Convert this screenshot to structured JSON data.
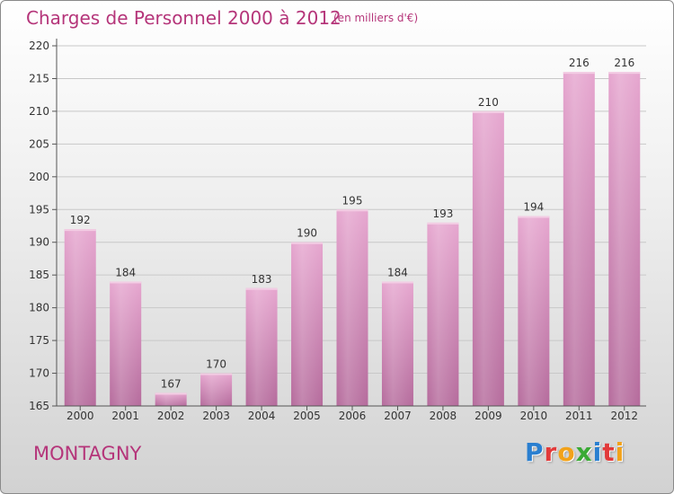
{
  "header": {
    "title": "Charges de Personnel 2000 à 2012",
    "subtitle": "(en milliers d'€)"
  },
  "footer": {
    "commune": "MONTAGNY",
    "logo_text": "Proxiti",
    "logo_letters": [
      {
        "char": "P",
        "color": "#2a7fd0"
      },
      {
        "char": "r",
        "color": "#e23a3a"
      },
      {
        "char": "o",
        "color": "#f2a21a"
      },
      {
        "char": "x",
        "color": "#3aaa35"
      },
      {
        "char": "i",
        "color": "#2a7fd0"
      },
      {
        "char": "t",
        "color": "#e23a3a"
      },
      {
        "char": "i",
        "color": "#f2a21a"
      }
    ]
  },
  "colors": {
    "accent": "#b5357a",
    "bar_top": "#e6a6cf",
    "bar_bottom": "#b56b9c",
    "grid": "#c8c8c8",
    "axis": "#555555"
  },
  "chart_data": {
    "type": "bar",
    "title": "Charges de Personnel 2000 à 2012",
    "subtitle": "(en milliers d'€)",
    "categories": [
      "2000",
      "2001",
      "2002",
      "2003",
      "2004",
      "2005",
      "2006",
      "2007",
      "2008",
      "2009",
      "2010",
      "2011",
      "2012"
    ],
    "values": [
      192,
      184,
      167,
      170,
      183,
      190,
      195,
      184,
      193,
      210,
      194,
      216,
      216
    ],
    "ylim": [
      165,
      220
    ],
    "yticks": [
      165,
      170,
      175,
      180,
      185,
      190,
      195,
      200,
      205,
      210,
      215,
      220
    ],
    "grid": true,
    "data_labels": true
  }
}
